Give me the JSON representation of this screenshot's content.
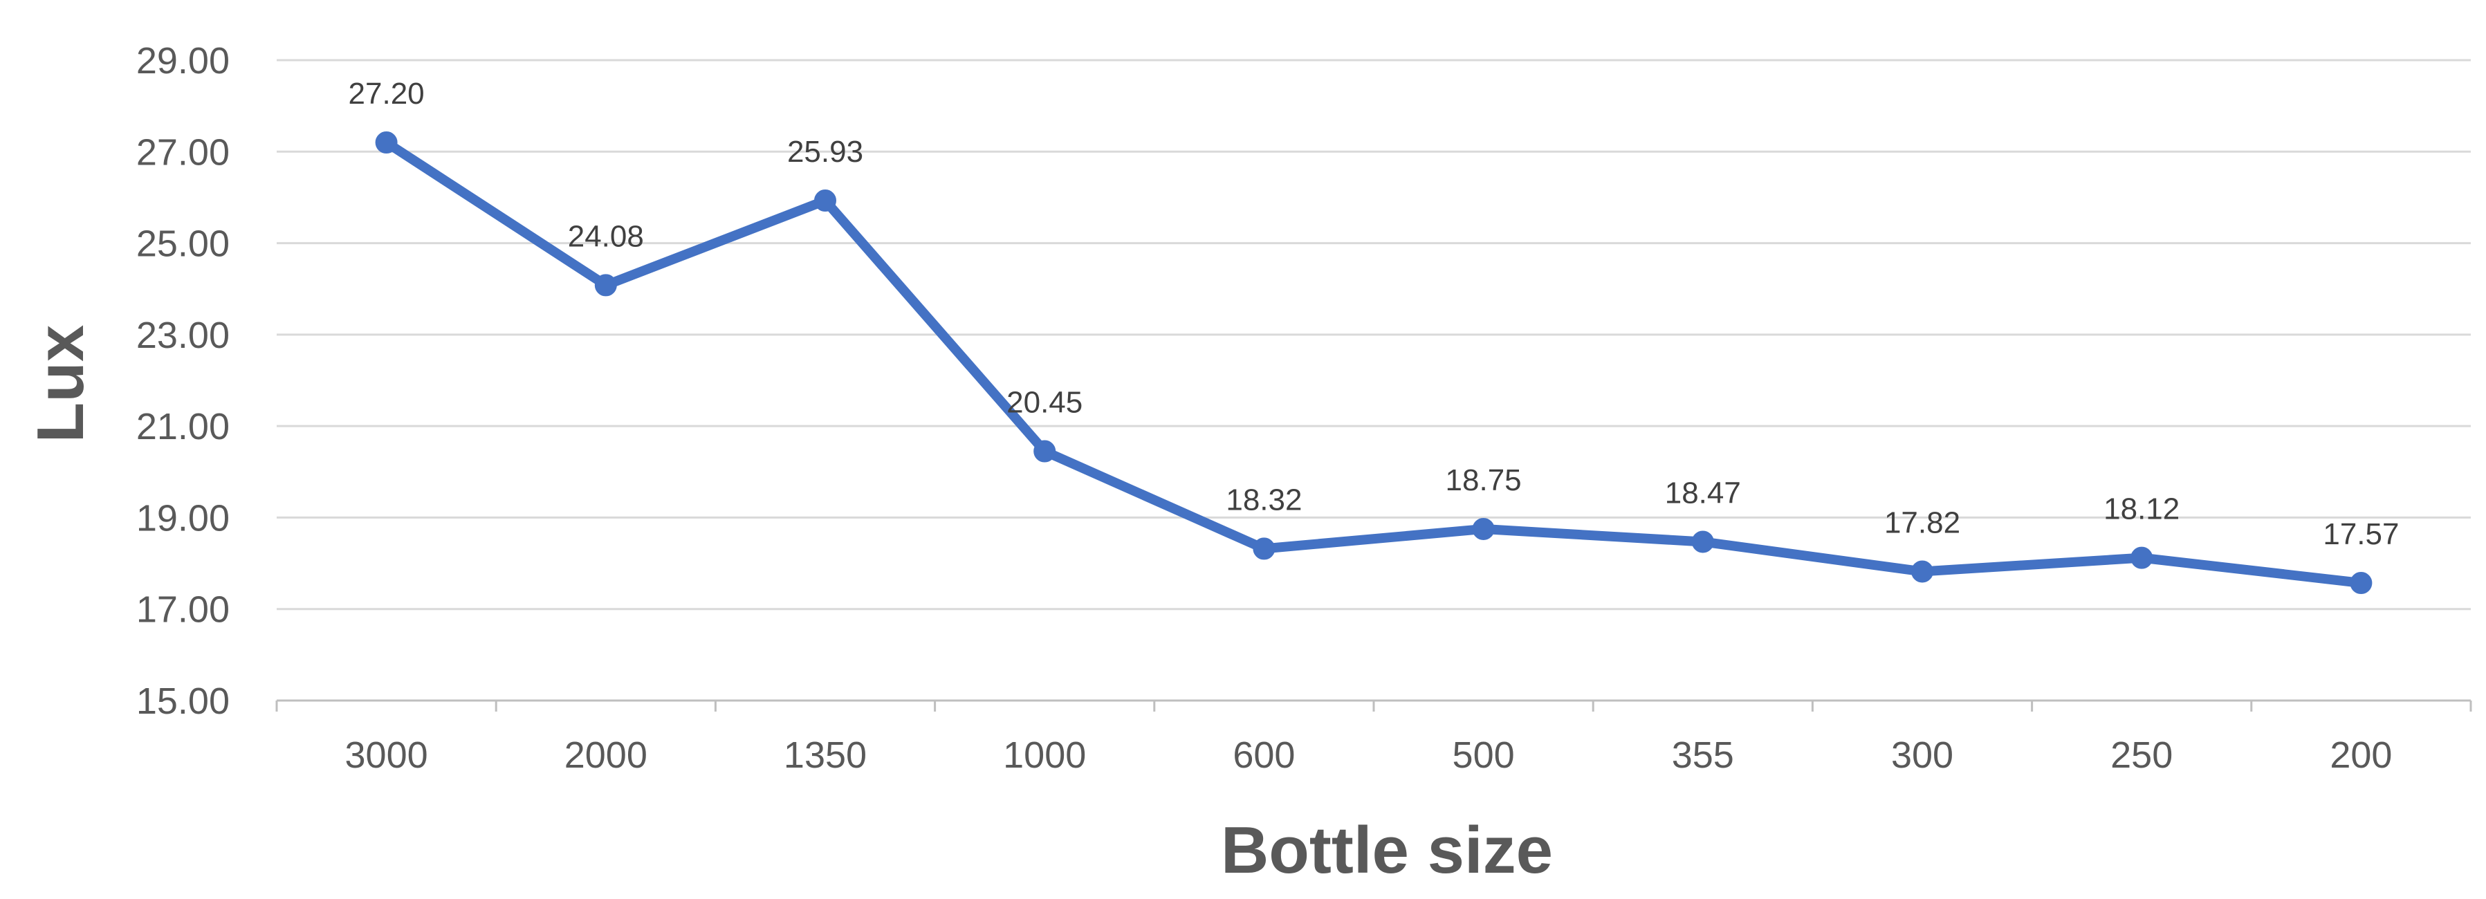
{
  "chart_data": {
    "type": "line",
    "title": "",
    "xlabel": "Bottle size",
    "ylabel": "Lux",
    "categories": [
      "3000",
      "2000",
      "1350",
      "1000",
      "600",
      "500",
      "355",
      "300",
      "250",
      "200"
    ],
    "series": [
      {
        "values": [
          27.2,
          24.08,
          25.93,
          20.45,
          18.32,
          18.75,
          18.47,
          17.82,
          18.12,
          17.57
        ],
        "color": "#4472C4",
        "marker": "circle",
        "data_labels": [
          "27.20",
          "24.08",
          "25.93",
          "20.45",
          "18.32",
          "18.75",
          "18.47",
          "17.82",
          "18.12",
          "17.57"
        ]
      }
    ],
    "ylim": [
      15,
      29
    ],
    "yticks": [
      15,
      17,
      19,
      21,
      23,
      25,
      27,
      29
    ],
    "ytick_labels": [
      "15.00",
      "17.00",
      "19.00",
      "21.00",
      "23.00",
      "25.00",
      "27.00",
      "29.00"
    ],
    "grid": true,
    "gridline_color": "#D9D9D9",
    "axis_color": "#BFBFBF",
    "text_color": "#595959",
    "legend": "none"
  }
}
